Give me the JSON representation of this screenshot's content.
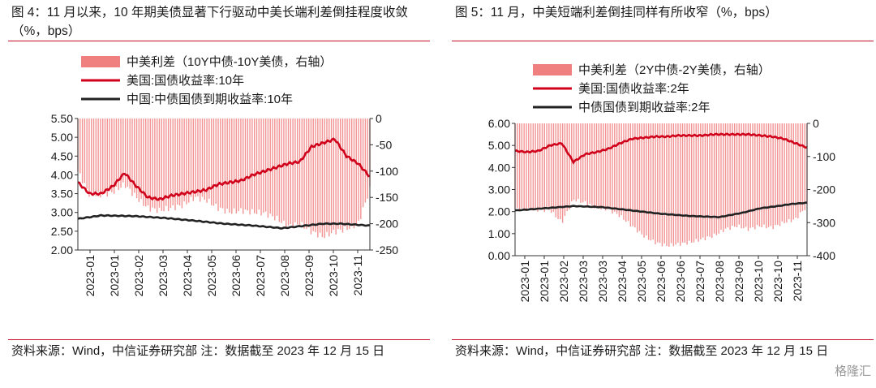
{
  "figure_left": {
    "title": "图 4：11 月以来，10 年期美债显著下行驱动中美长端利差倒挂程度收敛（%，bps）",
    "source": "资料来源：Wind，中信证券研究部 注：数据截至 2023 年 12 月 15 日",
    "legend": [
      "中美利差（10Y中债-10Y美债，右轴）",
      "美国:国债收益率:10年",
      "中国:中债国债到期收益率:10年"
    ],
    "y_left_ticks": [
      "5.50",
      "5.00",
      "4.50",
      "4.00",
      "3.50",
      "3.00",
      "2.50",
      "2.00"
    ],
    "y_right_ticks": [
      "0",
      "-50",
      "-100",
      "-150",
      "-200",
      "-250"
    ],
    "x_ticks": [
      "2023-01",
      "2023-01",
      "2023-02",
      "2023-03",
      "2023-04",
      "2023-05",
      "2023-06",
      "2023-07",
      "2023-08",
      "2023-09",
      "2023-10",
      "2023-11"
    ]
  },
  "figure_right": {
    "title": "图 5：11 月，中美短端利差倒挂同样有所收窄（%，bps）",
    "source": "资料来源：Wind，中信证券研究部 注：数据截至 2023 年 12 月 15 日",
    "legend": [
      "中美利差（2Y中债-2Y美债，右轴）",
      "美国:国债收益率:2年",
      "中债国债到期收益率:2年"
    ],
    "y_left_ticks": [
      "6.00",
      "5.00",
      "4.00",
      "3.00",
      "2.00",
      "1.00",
      "0.00"
    ],
    "y_right_ticks": [
      "0",
      "-100",
      "-200",
      "-300",
      "-400"
    ],
    "x_ticks": [
      "2023-01",
      "2023-01",
      "2023-02",
      "2023-03",
      "2023-03",
      "2023-04",
      "2023-05",
      "2023-06",
      "2023-06",
      "2023-07",
      "2023-08",
      "2023-09",
      "2023-10",
      "2023-10",
      "2023-11"
    ]
  },
  "watermark": "格隆汇",
  "colors": {
    "spread": "#f08080",
    "us": "#d0021b",
    "cn": "#222222",
    "rule": "#c8102e"
  },
  "chart_data": [
    {
      "type": "bar+line",
      "x_range": [
        "2023-01-01",
        "2023-12-15"
      ],
      "y_left_range": [
        2.0,
        5.5
      ],
      "y_right_range": [
        -250,
        0
      ],
      "series": [
        {
          "name": "中美利差（10Y中债-10Y美债，右轴）",
          "axis": "right",
          "kind": "bar",
          "x": [
            0.0,
            0.04,
            0.08,
            0.12,
            0.16,
            0.2,
            0.24,
            0.28,
            0.32,
            0.36,
            0.4,
            0.44,
            0.48,
            0.52,
            0.56,
            0.6,
            0.64,
            0.68,
            0.72,
            0.76,
            0.8,
            0.84,
            0.88,
            0.92,
            0.96,
            1.0
          ],
          "values": [
            -100,
            -145,
            -145,
            -140,
            -125,
            -150,
            -170,
            -175,
            -170,
            -165,
            -150,
            -155,
            -170,
            -178,
            -175,
            -178,
            -180,
            -190,
            -205,
            -200,
            -215,
            -225,
            -215,
            -210,
            -200,
            -135
          ]
        },
        {
          "name": "美国:国债收益率:10年",
          "axis": "left",
          "kind": "line",
          "x": [
            0.0,
            0.04,
            0.08,
            0.12,
            0.16,
            0.2,
            0.24,
            0.28,
            0.32,
            0.36,
            0.4,
            0.44,
            0.48,
            0.52,
            0.56,
            0.6,
            0.64,
            0.68,
            0.72,
            0.76,
            0.8,
            0.84,
            0.88,
            0.92,
            0.96,
            1.0
          ],
          "values": [
            3.8,
            3.5,
            3.5,
            3.7,
            4.05,
            3.7,
            3.4,
            3.35,
            3.45,
            3.5,
            3.55,
            3.6,
            3.75,
            3.8,
            3.85,
            4.0,
            4.1,
            4.2,
            4.3,
            4.35,
            4.75,
            4.85,
            4.95,
            4.5,
            4.3,
            3.95
          ]
        },
        {
          "name": "中国:中债国债到期收益率:10年",
          "axis": "left",
          "kind": "line",
          "x": [
            0.0,
            0.08,
            0.2,
            0.3,
            0.4,
            0.5,
            0.6,
            0.7,
            0.78,
            0.84,
            0.9,
            1.0
          ],
          "values": [
            2.83,
            2.92,
            2.9,
            2.85,
            2.78,
            2.7,
            2.65,
            2.58,
            2.65,
            2.7,
            2.7,
            2.65
          ]
        }
      ]
    },
    {
      "type": "bar+line",
      "x_range": [
        "2023-01-01",
        "2023-12-15"
      ],
      "y_left_range": [
        0.0,
        6.0
      ],
      "y_right_range": [
        -400,
        0
      ],
      "series": [
        {
          "name": "中美利差（2Y中债-2Y美债，右轴）",
          "axis": "right",
          "kind": "bar",
          "x": [
            0.0,
            0.04,
            0.08,
            0.12,
            0.16,
            0.2,
            0.24,
            0.28,
            0.32,
            0.36,
            0.4,
            0.44,
            0.48,
            0.52,
            0.56,
            0.6,
            0.64,
            0.68,
            0.72,
            0.76,
            0.8,
            0.84,
            0.88,
            0.92,
            0.96,
            1.0
          ],
          "values": [
            -260,
            -260,
            -262,
            -262,
            -300,
            -230,
            -240,
            -255,
            -260,
            -280,
            -310,
            -340,
            -360,
            -370,
            -365,
            -360,
            -350,
            -340,
            -320,
            -310,
            -320,
            -310,
            -315,
            -300,
            -290,
            -250
          ]
        },
        {
          "name": "美国:国债收益率:2年",
          "axis": "left",
          "kind": "line",
          "x": [
            0.0,
            0.04,
            0.08,
            0.12,
            0.16,
            0.2,
            0.24,
            0.28,
            0.32,
            0.36,
            0.4,
            0.44,
            0.48,
            0.52,
            0.56,
            0.6,
            0.64,
            0.68,
            0.72,
            0.76,
            0.8,
            0.84,
            0.88,
            0.92,
            0.96,
            1.0
          ],
          "values": [
            4.75,
            4.7,
            4.75,
            5.0,
            5.1,
            4.25,
            4.6,
            4.7,
            4.85,
            5.1,
            5.3,
            5.35,
            5.4,
            5.4,
            5.45,
            5.45,
            5.45,
            5.5,
            5.5,
            5.5,
            5.5,
            5.45,
            5.4,
            5.3,
            5.1,
            4.9
          ]
        },
        {
          "name": "中债国债到期收益率:2年",
          "axis": "left",
          "kind": "line",
          "x": [
            0.0,
            0.1,
            0.2,
            0.3,
            0.4,
            0.5,
            0.6,
            0.7,
            0.78,
            0.84,
            0.9,
            0.95,
            1.0
          ],
          "values": [
            2.05,
            2.15,
            2.25,
            2.2,
            2.05,
            1.9,
            1.8,
            1.75,
            1.95,
            2.15,
            2.25,
            2.35,
            2.4
          ]
        }
      ]
    }
  ]
}
